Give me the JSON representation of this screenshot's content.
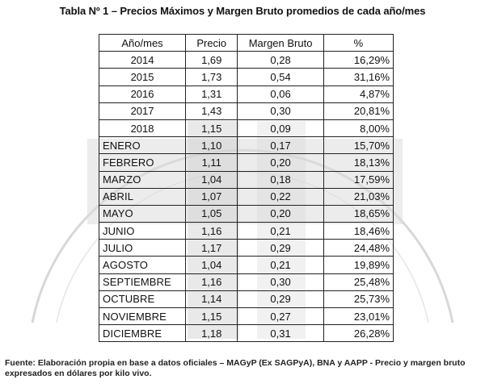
{
  "title": "Tabla Nº 1 – Precios Máximos y Margen Bruto promedios de cada año/mes",
  "table": {
    "headers": [
      "Año/mes",
      "Precio",
      "Margen Bruto",
      "%"
    ],
    "rows": [
      [
        "2014",
        "1,69",
        "0,28",
        "16,29%"
      ],
      [
        "2015",
        "1,73",
        "0,54",
        "31,16%"
      ],
      [
        "2016",
        "1,31",
        "0,06",
        "4,87%"
      ],
      [
        "2017",
        "1,43",
        "0,30",
        "20,81%"
      ],
      [
        "2018",
        "1,15",
        "0,09",
        "8,00%"
      ],
      [
        "ENERO",
        "1,10",
        "0,17",
        "15,70%"
      ],
      [
        "FEBRERO",
        "1,11",
        "0,20",
        "18,13%"
      ],
      [
        "MARZO",
        "1,04",
        "0,18",
        "17,59%"
      ],
      [
        "ABRIL",
        "1,07",
        "0,22",
        "21,03%"
      ],
      [
        "MAYO",
        "1,05",
        "0,20",
        "18,65%"
      ],
      [
        "JUNIO",
        "1,16",
        "0,21",
        "18,46%"
      ],
      [
        "JULIO",
        "1,17",
        "0,29",
        "24,48%"
      ],
      [
        "AGOSTO",
        "1,04",
        "0,21",
        "19,89%"
      ],
      [
        "SEPTIEMBRE",
        "1,16",
        "0,30",
        "25,48%"
      ],
      [
        "OCTUBRE",
        "1,14",
        "0,29",
        "25,73%"
      ],
      [
        "NOVIEMBRE",
        "1,15",
        "0,27",
        "23,01%"
      ],
      [
        "DICIEMBRE",
        "1,18",
        "0,31",
        "26,28%"
      ]
    ]
  },
  "source": "Fuente: Elaboración propia en base a datos oficiales – MAGyP (Ex SAGPyA), BNA y AAPP - Precio y margen bruto expresados en dólares por kilo vivo."
}
